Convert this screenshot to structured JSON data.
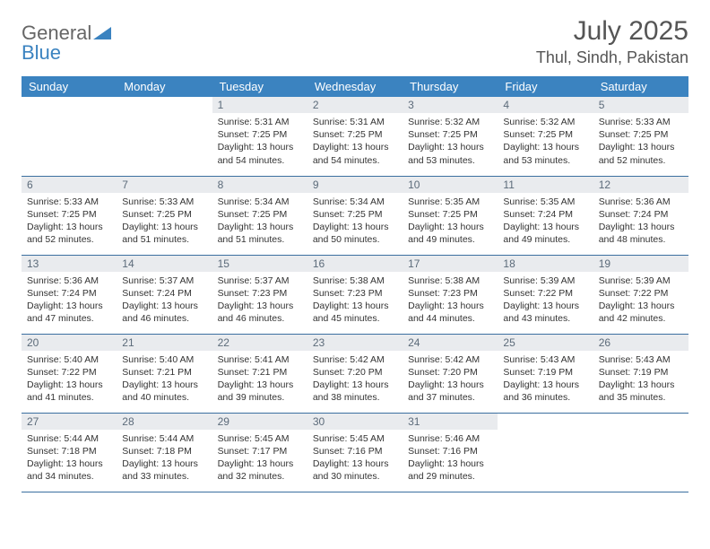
{
  "brand": {
    "text1": "General",
    "text2": "Blue",
    "text2_color": "#3b83c0"
  },
  "title": "July 2025",
  "location": "Thul, Sindh, Pakistan",
  "colors": {
    "header_bg": "#3b83c0",
    "header_text": "#ffffff",
    "daynum_bg": "#e9ebee",
    "daynum_text": "#5c6b7a",
    "row_border": "#3b6fa0",
    "body_text": "#333333"
  },
  "day_headers": [
    "Sunday",
    "Monday",
    "Tuesday",
    "Wednesday",
    "Thursday",
    "Friday",
    "Saturday"
  ],
  "weeks": [
    [
      null,
      null,
      {
        "n": "1",
        "sunrise": "5:31 AM",
        "sunset": "7:25 PM",
        "daylight": "13 hours and 54 minutes."
      },
      {
        "n": "2",
        "sunrise": "5:31 AM",
        "sunset": "7:25 PM",
        "daylight": "13 hours and 54 minutes."
      },
      {
        "n": "3",
        "sunrise": "5:32 AM",
        "sunset": "7:25 PM",
        "daylight": "13 hours and 53 minutes."
      },
      {
        "n": "4",
        "sunrise": "5:32 AM",
        "sunset": "7:25 PM",
        "daylight": "13 hours and 53 minutes."
      },
      {
        "n": "5",
        "sunrise": "5:33 AM",
        "sunset": "7:25 PM",
        "daylight": "13 hours and 52 minutes."
      }
    ],
    [
      {
        "n": "6",
        "sunrise": "5:33 AM",
        "sunset": "7:25 PM",
        "daylight": "13 hours and 52 minutes."
      },
      {
        "n": "7",
        "sunrise": "5:33 AM",
        "sunset": "7:25 PM",
        "daylight": "13 hours and 51 minutes."
      },
      {
        "n": "8",
        "sunrise": "5:34 AM",
        "sunset": "7:25 PM",
        "daylight": "13 hours and 51 minutes."
      },
      {
        "n": "9",
        "sunrise": "5:34 AM",
        "sunset": "7:25 PM",
        "daylight": "13 hours and 50 minutes."
      },
      {
        "n": "10",
        "sunrise": "5:35 AM",
        "sunset": "7:25 PM",
        "daylight": "13 hours and 49 minutes."
      },
      {
        "n": "11",
        "sunrise": "5:35 AM",
        "sunset": "7:24 PM",
        "daylight": "13 hours and 49 minutes."
      },
      {
        "n": "12",
        "sunrise": "5:36 AM",
        "sunset": "7:24 PM",
        "daylight": "13 hours and 48 minutes."
      }
    ],
    [
      {
        "n": "13",
        "sunrise": "5:36 AM",
        "sunset": "7:24 PM",
        "daylight": "13 hours and 47 minutes."
      },
      {
        "n": "14",
        "sunrise": "5:37 AM",
        "sunset": "7:24 PM",
        "daylight": "13 hours and 46 minutes."
      },
      {
        "n": "15",
        "sunrise": "5:37 AM",
        "sunset": "7:23 PM",
        "daylight": "13 hours and 46 minutes."
      },
      {
        "n": "16",
        "sunrise": "5:38 AM",
        "sunset": "7:23 PM",
        "daylight": "13 hours and 45 minutes."
      },
      {
        "n": "17",
        "sunrise": "5:38 AM",
        "sunset": "7:23 PM",
        "daylight": "13 hours and 44 minutes."
      },
      {
        "n": "18",
        "sunrise": "5:39 AM",
        "sunset": "7:22 PM",
        "daylight": "13 hours and 43 minutes."
      },
      {
        "n": "19",
        "sunrise": "5:39 AM",
        "sunset": "7:22 PM",
        "daylight": "13 hours and 42 minutes."
      }
    ],
    [
      {
        "n": "20",
        "sunrise": "5:40 AM",
        "sunset": "7:22 PM",
        "daylight": "13 hours and 41 minutes."
      },
      {
        "n": "21",
        "sunrise": "5:40 AM",
        "sunset": "7:21 PM",
        "daylight": "13 hours and 40 minutes."
      },
      {
        "n": "22",
        "sunrise": "5:41 AM",
        "sunset": "7:21 PM",
        "daylight": "13 hours and 39 minutes."
      },
      {
        "n": "23",
        "sunrise": "5:42 AM",
        "sunset": "7:20 PM",
        "daylight": "13 hours and 38 minutes."
      },
      {
        "n": "24",
        "sunrise": "5:42 AM",
        "sunset": "7:20 PM",
        "daylight": "13 hours and 37 minutes."
      },
      {
        "n": "25",
        "sunrise": "5:43 AM",
        "sunset": "7:19 PM",
        "daylight": "13 hours and 36 minutes."
      },
      {
        "n": "26",
        "sunrise": "5:43 AM",
        "sunset": "7:19 PM",
        "daylight": "13 hours and 35 minutes."
      }
    ],
    [
      {
        "n": "27",
        "sunrise": "5:44 AM",
        "sunset": "7:18 PM",
        "daylight": "13 hours and 34 minutes."
      },
      {
        "n": "28",
        "sunrise": "5:44 AM",
        "sunset": "7:18 PM",
        "daylight": "13 hours and 33 minutes."
      },
      {
        "n": "29",
        "sunrise": "5:45 AM",
        "sunset": "7:17 PM",
        "daylight": "13 hours and 32 minutes."
      },
      {
        "n": "30",
        "sunrise": "5:45 AM",
        "sunset": "7:16 PM",
        "daylight": "13 hours and 30 minutes."
      },
      {
        "n": "31",
        "sunrise": "5:46 AM",
        "sunset": "7:16 PM",
        "daylight": "13 hours and 29 minutes."
      },
      null,
      null
    ]
  ],
  "labels": {
    "sunrise": "Sunrise:",
    "sunset": "Sunset:",
    "daylight": "Daylight:"
  }
}
